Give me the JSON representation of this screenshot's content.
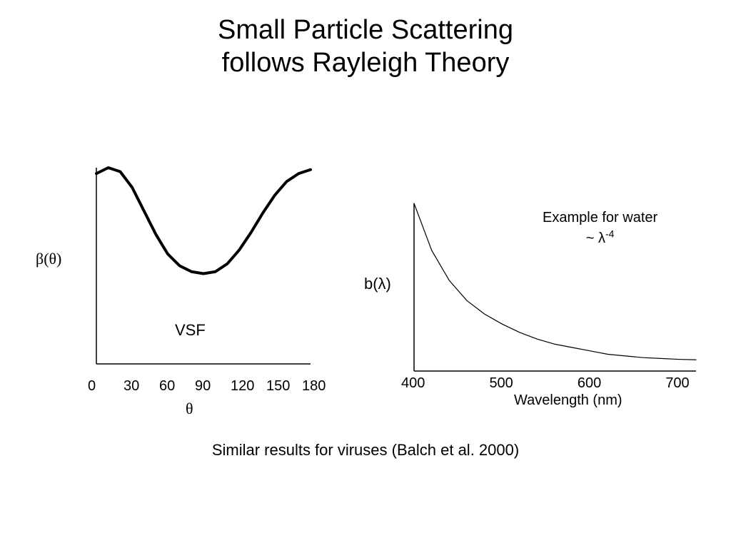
{
  "title_line1": "Small Particle Scattering",
  "title_line2": "follows Rayleigh Theory",
  "title_fontsize": 38,
  "title_font": "Comic Sans MS",
  "background_color": "#ffffff",
  "left_chart": {
    "type": "line",
    "ylabel": "β(θ)",
    "xlabel": "θ",
    "inset_label": "VSF",
    "xticks": [
      0,
      30,
      60,
      90,
      120,
      150,
      180
    ],
    "xlim": [
      0,
      180
    ],
    "ylim": [
      0,
      1
    ],
    "axis_color": "#000000",
    "axis_width": 1.5,
    "line_color": "#000000",
    "line_width": 4,
    "tick_fontsize": 20,
    "label_fontsize": 22,
    "series_x": [
      0,
      10,
      20,
      30,
      40,
      50,
      60,
      70,
      80,
      90,
      100,
      110,
      120,
      130,
      140,
      150,
      160,
      170,
      180
    ],
    "series_y": [
      0.97,
      1.0,
      0.98,
      0.9,
      0.78,
      0.66,
      0.56,
      0.5,
      0.47,
      0.46,
      0.47,
      0.51,
      0.58,
      0.67,
      0.77,
      0.86,
      0.93,
      0.97,
      0.99
    ]
  },
  "right_chart": {
    "type": "line",
    "ylabel": "b(λ)",
    "xlabel": "Wavelength (nm)",
    "annotation_line1": "Example for water",
    "annotation_line2": "~ λ",
    "annotation_exp": "-4",
    "xticks": [
      400,
      500,
      600,
      700
    ],
    "xlim": [
      400,
      720
    ],
    "ylim": [
      0,
      1
    ],
    "axis_color": "#000000",
    "axis_width": 1.5,
    "line_color": "#000000",
    "line_width": 1.2,
    "tick_fontsize": 20,
    "label_fontsize": 20,
    "series_x": [
      400,
      420,
      440,
      460,
      480,
      500,
      520,
      540,
      560,
      580,
      600,
      620,
      640,
      660,
      680,
      700,
      720
    ],
    "series_y": [
      1.0,
      0.72,
      0.54,
      0.42,
      0.34,
      0.28,
      0.23,
      0.19,
      0.16,
      0.14,
      0.12,
      0.1,
      0.09,
      0.08,
      0.075,
      0.07,
      0.067
    ]
  },
  "footer": "Similar results for viruses (Balch et al. 2000)",
  "footer_fontsize": 22
}
